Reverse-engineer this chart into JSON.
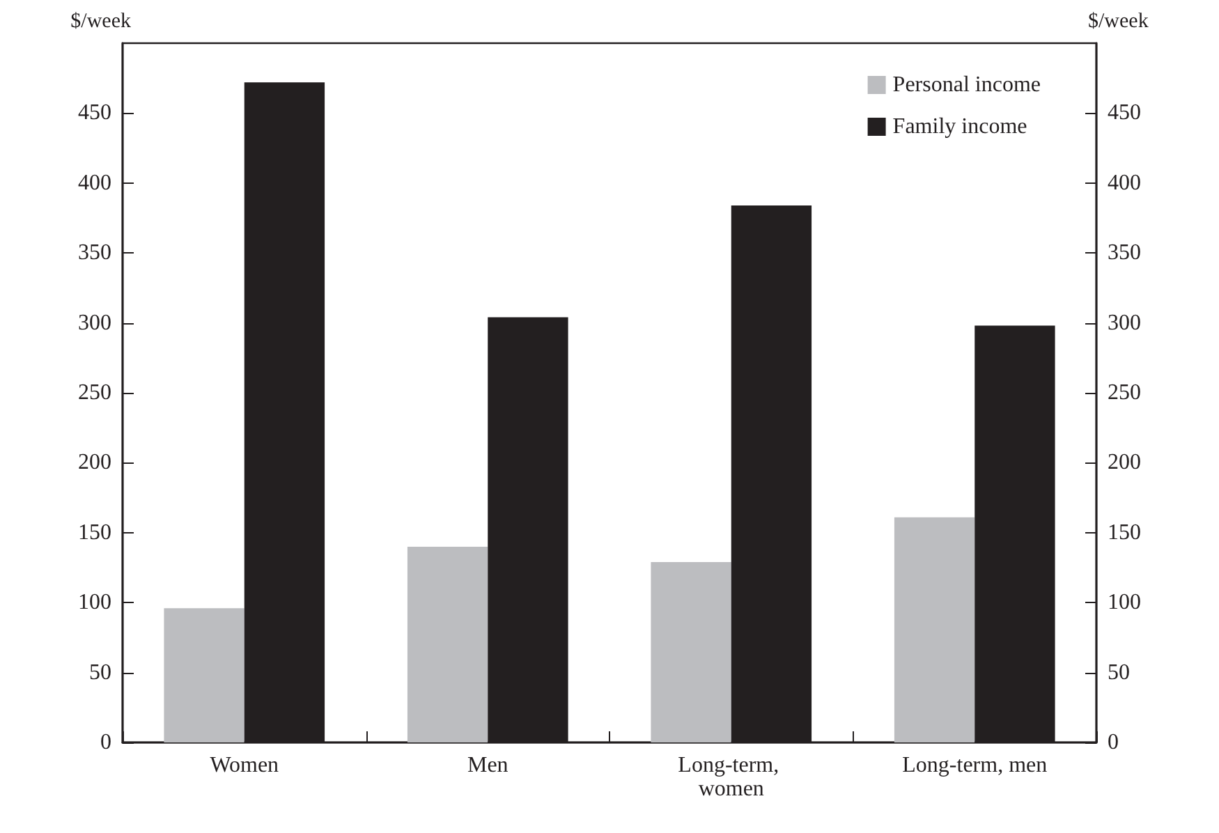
{
  "chart_data": {
    "type": "bar",
    "ylabel": "$/week",
    "y2label": "$/week",
    "categories": [
      "Women",
      "Men",
      "Long-term, women",
      "Long-term, men"
    ],
    "series": [
      {
        "name": "Personal income",
        "color": "#bcbdc0",
        "values": [
          96,
          140,
          129,
          161
        ]
      },
      {
        "name": "Family income",
        "color": "#231f20",
        "values": [
          472,
          304,
          384,
          298
        ]
      }
    ],
    "ylim": [
      0,
      500
    ],
    "yticks": [
      0,
      50,
      100,
      150,
      200,
      250,
      300,
      350,
      400,
      450
    ],
    "y2lim": [
      0,
      500
    ],
    "y2ticks": [
      0,
      50,
      100,
      150,
      200,
      250,
      300,
      350,
      400,
      450
    ],
    "grid": false,
    "legend": "top right"
  }
}
